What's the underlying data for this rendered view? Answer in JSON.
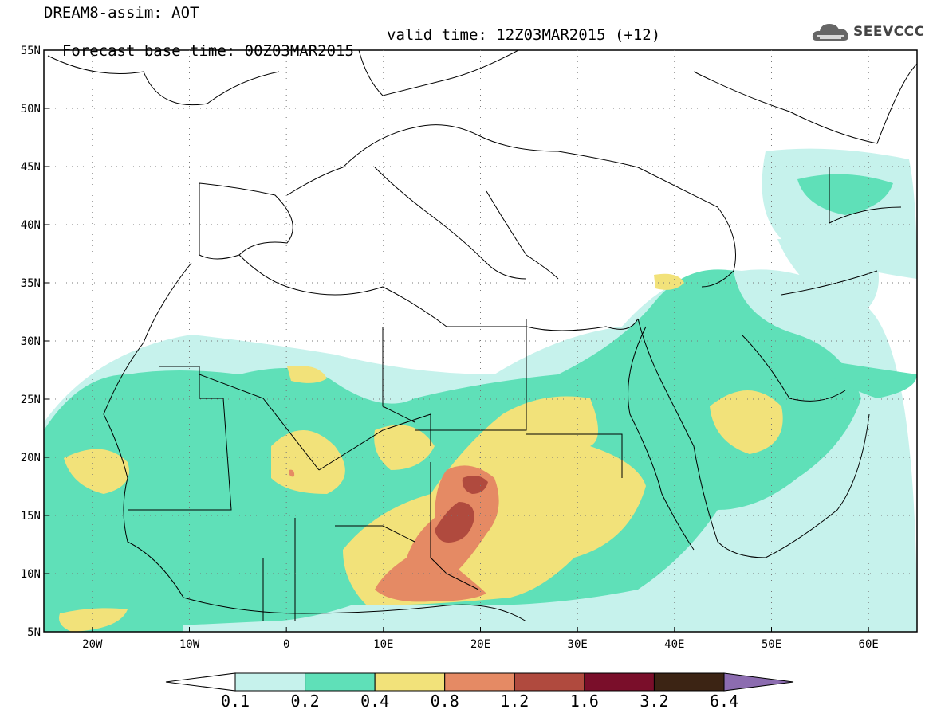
{
  "header": {
    "title_line1": "DREAM8-assim: AOT",
    "title_line2": "Forecast base time: 00Z03MAR2015",
    "valid_time": "valid time: 12Z03MAR2015 (+12)"
  },
  "logo": {
    "text": "SEEVCCC",
    "icon": "cloud-icon"
  },
  "axes": {
    "lat_labels": [
      "55N",
      "50N",
      "45N",
      "40N",
      "35N",
      "30N",
      "25N",
      "20N",
      "15N",
      "10N",
      "5N"
    ],
    "lon_labels": [
      "20W",
      "10W",
      "0",
      "10E",
      "20E",
      "30E",
      "40E",
      "50E",
      "60E"
    ]
  },
  "colorbar": {
    "labels": [
      "0.1",
      "0.2",
      "0.4",
      "0.8",
      "1.2",
      "1.6",
      "3.2",
      "6.4"
    ],
    "colors": [
      "#c6f2ec",
      "#5fe0b8",
      "#f2e27a",
      "#e58a64",
      "#b04a3e",
      "#7a0e2a",
      "#3c2414",
      "#8c6cb0"
    ],
    "low_color": "#ffffff"
  }
}
